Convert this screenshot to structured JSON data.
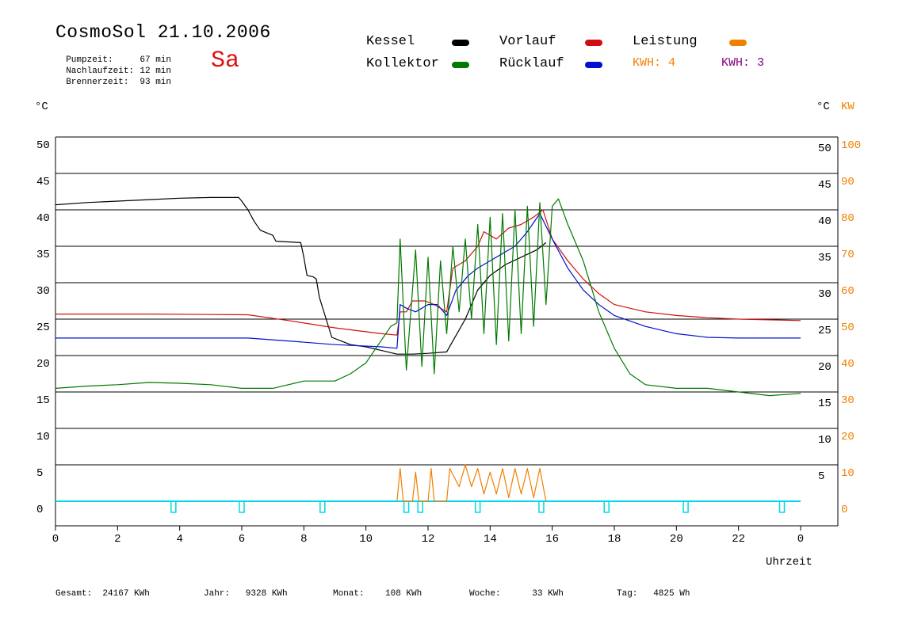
{
  "header": {
    "title": "CosmoSol 21.10.2006",
    "day": "Sa",
    "stats": [
      {
        "label": "Pumpzeit:",
        "value": "67 min"
      },
      {
        "label": "Nachlaufzeit:",
        "value": "12 min"
      },
      {
        "label": "Brennerzeit:",
        "value": "93 min"
      }
    ]
  },
  "legend": {
    "kessel": "Kessel",
    "kollektor": "Kollektor",
    "vorlauf": "Vorlauf",
    "ruecklauf": "Rücklauf",
    "leistung": "Leistung",
    "kwh1": "KWH: 4",
    "kwh2": "KWH: 3"
  },
  "colors": {
    "kessel": "#000000",
    "kollektor": "#007a00",
    "vorlauf": "#d01010",
    "ruecklauf": "#0010d0",
    "leistung": "#f08000",
    "kwh2": "#800080",
    "cyan": "#00d8e8"
  },
  "axes": {
    "left_unit": "°C",
    "right_unit": "°C",
    "right_unit2": "KW",
    "xlabel": "Uhrzeit"
  },
  "footer": {
    "gesamt": "Gesamt:  24167 KWh",
    "jahr": "Jahr:   9328 KWh",
    "monat": "Monat:    108 KWh",
    "woche": "Woche:      33 KWh",
    "tag": "Tag:   4825 Wh"
  },
  "chart_data": {
    "type": "line",
    "title": "CosmoSol 21.10.2006",
    "xlabel": "Uhrzeit",
    "ylabel": "°C",
    "y2label": "KW",
    "xlim": [
      0,
      24
    ],
    "ylim": [
      -3.5,
      51
    ],
    "grid": true,
    "legend_position": "top",
    "x_ticks": [
      "0",
      "2",
      "4",
      "6",
      "8",
      "10",
      "12",
      "14",
      "16",
      "18",
      "20",
      "22",
      "0"
    ],
    "y_ticks_left": [
      0,
      5,
      10,
      15,
      20,
      25,
      30,
      35,
      40,
      45,
      50
    ],
    "y_ticks_right": [
      5,
      10,
      15,
      20,
      25,
      30,
      35,
      40,
      45,
      50
    ],
    "y2_ticks": [
      0,
      10,
      20,
      30,
      40,
      50,
      60,
      70,
      80,
      90,
      100
    ],
    "series": [
      {
        "name": "Kessel",
        "color": "#000000",
        "x": [
          0,
          1,
          2,
          3,
          4,
          5,
          5.9,
          6.0,
          6.2,
          6.4,
          6.6,
          7.0,
          7.1,
          7.5,
          7.9,
          8.0,
          8.1,
          8.3,
          8.4,
          8.5,
          8.9,
          9.2,
          9.5,
          10.0,
          10.5,
          11.0,
          11.5,
          12.0,
          12.6,
          12.8,
          13.2,
          13.6,
          14.0,
          14.5,
          15.0,
          15.5,
          15.8
        ],
        "values": [
          40.7,
          41,
          41.2,
          41.4,
          41.6,
          41.7,
          41.7,
          41.2,
          40.0,
          38.4,
          37.2,
          36.5,
          35.7,
          35.6,
          35.5,
          33.5,
          31.0,
          30.8,
          30.5,
          28.0,
          22.5,
          22.0,
          21.5,
          21.2,
          20.7,
          20.2,
          20.2,
          20.3,
          20.5,
          22.0,
          25.0,
          29.0,
          31.0,
          32.5,
          33.5,
          34.5,
          35.5
        ]
      },
      {
        "name": "Vorlauf",
        "color": "#d01010",
        "x": [
          0,
          3,
          6.2,
          7.5,
          9,
          10.5,
          11.0,
          11.1,
          11.3,
          11.5,
          11.9,
          12.2,
          12.6,
          12.8,
          13.2,
          13.6,
          13.8,
          14.2,
          14.6,
          15.0,
          15.4,
          15.7,
          16.0,
          16.5,
          17.0,
          17.5,
          18.0,
          19.0,
          20.0,
          21.0,
          22.0,
          23.0,
          24.0
        ],
        "values": [
          25.7,
          25.7,
          25.6,
          24.8,
          23.8,
          23.0,
          22.8,
          26.0,
          26.0,
          27.5,
          27.5,
          27.0,
          26.0,
          32.0,
          33.0,
          35.0,
          37.0,
          36.0,
          37.5,
          38.0,
          39.0,
          40.0,
          36.0,
          33.0,
          30.5,
          28.5,
          27.0,
          26.0,
          25.5,
          25.2,
          25.0,
          24.9,
          24.8
        ]
      },
      {
        "name": "Rücklauf",
        "color": "#0010d0",
        "x": [
          0,
          3,
          6.2,
          7.5,
          9,
          10.5,
          11.0,
          11.1,
          11.3,
          11.6,
          12.0,
          12.3,
          12.6,
          12.9,
          13.3,
          13.6,
          14.0,
          14.4,
          14.8,
          15.2,
          15.6,
          16.0,
          16.5,
          17.0,
          17.5,
          18.0,
          19.0,
          20.0,
          21.0,
          22.0,
          23.0,
          24.0
        ],
        "values": [
          22.4,
          22.4,
          22.4,
          22.0,
          21.5,
          21.2,
          21.0,
          27.0,
          26.5,
          26.0,
          27.0,
          27.0,
          25.5,
          29.0,
          31.0,
          32.0,
          33.0,
          34.0,
          35.0,
          37.0,
          39.5,
          36.0,
          32.0,
          29.0,
          27.0,
          25.5,
          24.0,
          23.0,
          22.5,
          22.4,
          22.4,
          22.4
        ]
      },
      {
        "name": "Kollektor",
        "color": "#007a00",
        "x": [
          0,
          1,
          2,
          3,
          4,
          5,
          6,
          7,
          8,
          9,
          9.5,
          10.0,
          10.4,
          10.8,
          11.0,
          11.1,
          11.3,
          11.6,
          11.8,
          12.0,
          12.2,
          12.4,
          12.6,
          12.8,
          13.0,
          13.2,
          13.4,
          13.6,
          13.8,
          14.0,
          14.2,
          14.4,
          14.6,
          14.8,
          15.0,
          15.2,
          15.4,
          15.6,
          15.8,
          16.0,
          16.2,
          16.5,
          17.0,
          17.5,
          18.0,
          18.5,
          19.0,
          20.0,
          21.0,
          22.0,
          23.0,
          24.0
        ],
        "values": [
          15.5,
          15.8,
          16.0,
          16.3,
          16.2,
          16.0,
          15.5,
          15.5,
          16.5,
          16.5,
          17.5,
          19.0,
          21.5,
          24.0,
          24.5,
          36.0,
          18.0,
          34.5,
          18.5,
          33.5,
          17.5,
          33.0,
          23.0,
          35.0,
          26.0,
          36.0,
          25.0,
          38.0,
          23.0,
          39.0,
          21.5,
          39.5,
          22.0,
          40.0,
          23.0,
          40.5,
          24.0,
          41.0,
          27.0,
          40.5,
          41.5,
          38.0,
          33.0,
          26.0,
          21.0,
          17.5,
          16.0,
          15.5,
          15.5,
          15.0,
          14.5,
          14.8
        ]
      },
      {
        "name": "Leistung",
        "color": "#f08000",
        "axis": "right",
        "x": [
          11.0,
          11.1,
          11.2,
          11.5,
          11.6,
          11.7,
          12.0,
          12.1,
          12.2,
          12.6,
          12.7,
          13.0,
          13.2,
          13.4,
          13.6,
          13.8,
          14.0,
          14.2,
          14.4,
          14.6,
          14.8,
          15.0,
          15.2,
          15.4,
          15.6,
          15.8
        ],
        "values": [
          0,
          9,
          0,
          0,
          8,
          0,
          0,
          9,
          0,
          0,
          9,
          4,
          10,
          4,
          9,
          2,
          8,
          2,
          9,
          1,
          9,
          2,
          9,
          1,
          9,
          0
        ]
      }
    ],
    "pump_markers_x": [
      3.8,
      6.0,
      8.6,
      11.3,
      11.75,
      13.6,
      15.65,
      17.75,
      20.3,
      23.4
    ]
  }
}
